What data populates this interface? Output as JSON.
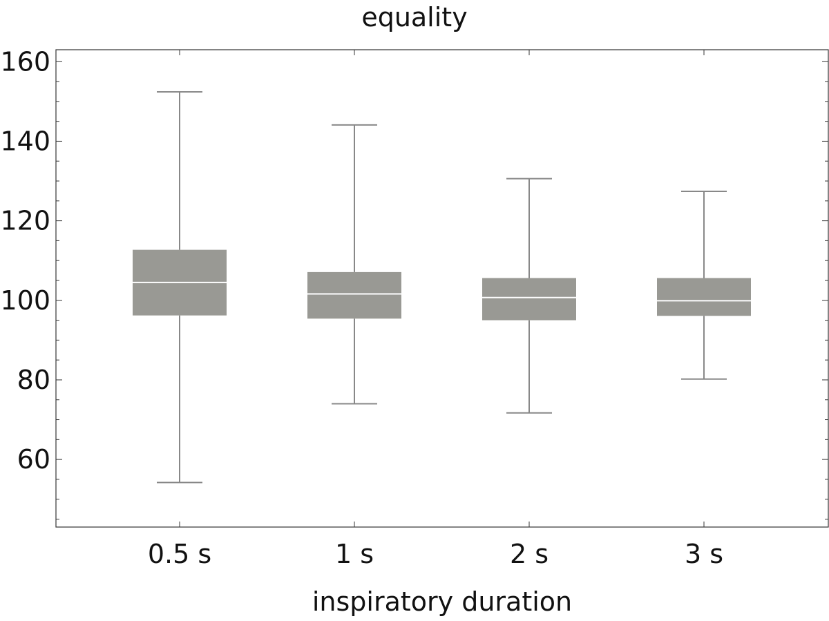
{
  "chart_data": {
    "type": "box",
    "title": "equality",
    "xlabel": "inspiratory duration",
    "ylabel": "",
    "ylim": [
      43,
      163
    ],
    "yticks": [
      60,
      80,
      100,
      120,
      140,
      160
    ],
    "y_minor_step": 5,
    "grid": false,
    "categories": [
      "0.5 s",
      "1 s",
      "2 s",
      "3 s"
    ],
    "series": [
      {
        "boxes": [
          {
            "min": 54.2,
            "q1": 96.2,
            "median": 104.5,
            "q3": 112.7,
            "max": 152.4
          },
          {
            "min": 74.0,
            "q1": 95.4,
            "median": 101.6,
            "q3": 107.1,
            "max": 144.1
          },
          {
            "min": 71.7,
            "q1": 95.0,
            "median": 100.7,
            "q3": 105.6,
            "max": 130.6
          },
          {
            "min": 80.2,
            "q1": 96.1,
            "median": 99.9,
            "q3": 105.6,
            "max": 127.4
          }
        ]
      }
    ],
    "colors": {
      "box_fill": "#999994",
      "median_line": "#ffffff",
      "whisker": "#888888",
      "axis": "#333333",
      "text": "#111111"
    }
  }
}
